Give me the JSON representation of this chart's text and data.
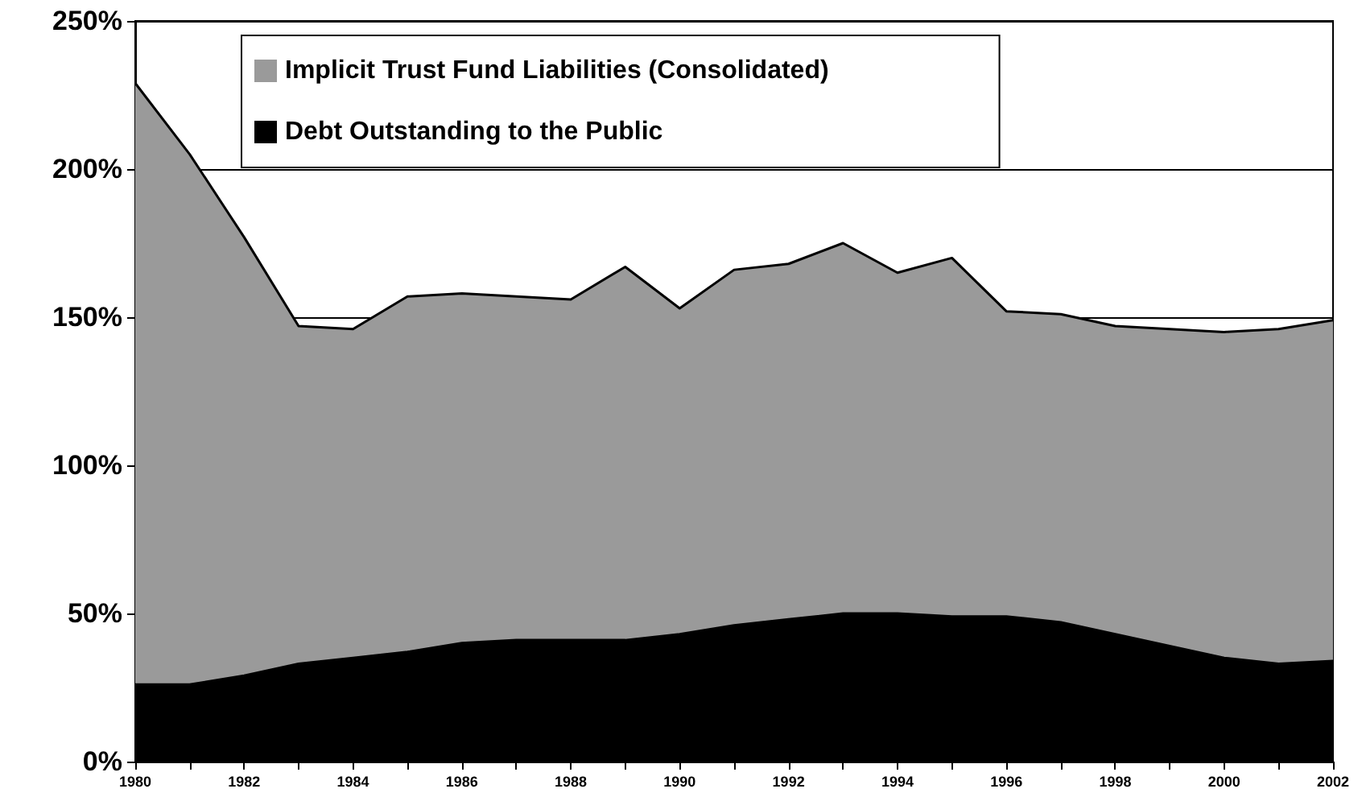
{
  "chart_data": {
    "type": "area",
    "stacked": true,
    "x": [
      1980,
      1981,
      1982,
      1983,
      1984,
      1985,
      1986,
      1987,
      1988,
      1989,
      1990,
      1991,
      1992,
      1993,
      1994,
      1995,
      1996,
      1997,
      1998,
      1999,
      2000,
      2001,
      2002
    ],
    "series": [
      {
        "name": "Debt Outstanding to the Public",
        "color": "#000000",
        "values": [
          26,
          26,
          29,
          33,
          35,
          37,
          40,
          41,
          41,
          41,
          43,
          46,
          48,
          50,
          50,
          49,
          49,
          47,
          43,
          39,
          35,
          33,
          34
        ]
      },
      {
        "name": "Implicit Trust Fund Liabilities (Consolidated)",
        "color": "#9a9a9a",
        "values": [
          203,
          179,
          148,
          114,
          111,
          120,
          118,
          116,
          115,
          126,
          110,
          120,
          120,
          125,
          115,
          121,
          103,
          104,
          104,
          107,
          110,
          113,
          115
        ]
      }
    ],
    "xlim": [
      1980,
      2002
    ],
    "xticks": [
      1980,
      {
        "value": 1981,
        "label": null
      },
      1982,
      {
        "value": 1983,
        "label": null
      },
      1984,
      {
        "value": 1985,
        "label": null
      },
      1986,
      {
        "value": 1987,
        "label": null
      },
      1988,
      {
        "value": 1989,
        "label": null
      },
      1990,
      {
        "value": 1991,
        "label": null
      },
      1992,
      {
        "value": 1993,
        "label": null
      },
      1994,
      {
        "value": 1995,
        "label": null
      },
      1996,
      {
        "value": 1997,
        "label": null
      },
      1998,
      {
        "value": 1999,
        "label": null
      },
      2000,
      {
        "value": 2001,
        "label": null
      },
      2002
    ],
    "ylim": [
      0,
      250
    ],
    "yticks": [
      {
        "value": 0,
        "label": "0%"
      },
      {
        "value": 50,
        "label": "50%"
      },
      {
        "value": 100,
        "label": "100%"
      },
      {
        "value": 150,
        "label": "150%"
      },
      {
        "value": 200,
        "label": "200%"
      },
      {
        "value": 250,
        "label": "250%"
      }
    ],
    "grid": "y",
    "legend": "top"
  }
}
